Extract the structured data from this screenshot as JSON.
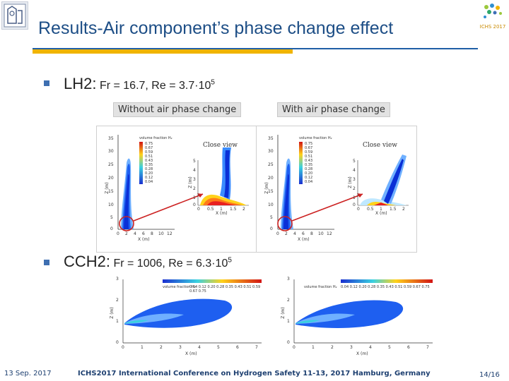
{
  "header": {
    "title": "Results-Air component’s phase change effect",
    "conference_logo_text": "ICHS 2017"
  },
  "bullets": {
    "lh2": {
      "label": "LH2:",
      "params": "Fr = 16.7, Re = 3.7·10",
      "exponent": "5"
    },
    "cch2": {
      "label": "CCH2:",
      "params": "Fr = 1006, Re = 6.3·10",
      "exponent": "5"
    }
  },
  "captions": {
    "without": "Without air phase change",
    "with": "With air phase change"
  },
  "figure_top": {
    "close_view": "Close view",
    "legend_title": "volume fraction H₂",
    "legend_values": [
      "0.75",
      "0.67",
      "0.59",
      "0.51",
      "0.43",
      "0.35",
      "0.28",
      "0.20",
      "0.12",
      "0.04"
    ],
    "z_ticks": [
      "35",
      "30",
      "25",
      "20",
      "15",
      "10",
      "5",
      "0"
    ],
    "x_ticks": [
      "0",
      "2",
      "4",
      "6",
      "8",
      "10",
      "12"
    ],
    "zoom_z_ticks": [
      "5",
      "4",
      "3",
      "2",
      "1",
      "0"
    ],
    "zoom_x_ticks": [
      "0",
      "0.5",
      "1",
      "1.5",
      "2"
    ],
    "z_label": "Z (m)",
    "x_label": "X (m)"
  },
  "figure_bottom": {
    "legend_title": "volume fraction H₂",
    "legend_values": "0.04 0.12 0.20 0.28 0.35 0.43 0.51 0.59 0.67 0.75",
    "z_ticks": [
      "3",
      "2",
      "1",
      "0"
    ],
    "x_ticks": [
      "0",
      "1",
      "2",
      "3",
      "4",
      "5",
      "6",
      "7"
    ],
    "z_label": "Z (m)",
    "x_label": "X (m)"
  },
  "footer": {
    "date": "13 Sep. 2017",
    "conference": "ICHS2017 International Conference on Hydrogen Safety 11-13, 2017 Hamburg, Germany",
    "page": "14/16"
  },
  "colors": {
    "title": "#1d4e86",
    "rule_blue": "#1f5fa6",
    "rule_gold": "#f0b400",
    "jet_dark": "#0a2fd6",
    "arrow_red": "#cc2222"
  }
}
